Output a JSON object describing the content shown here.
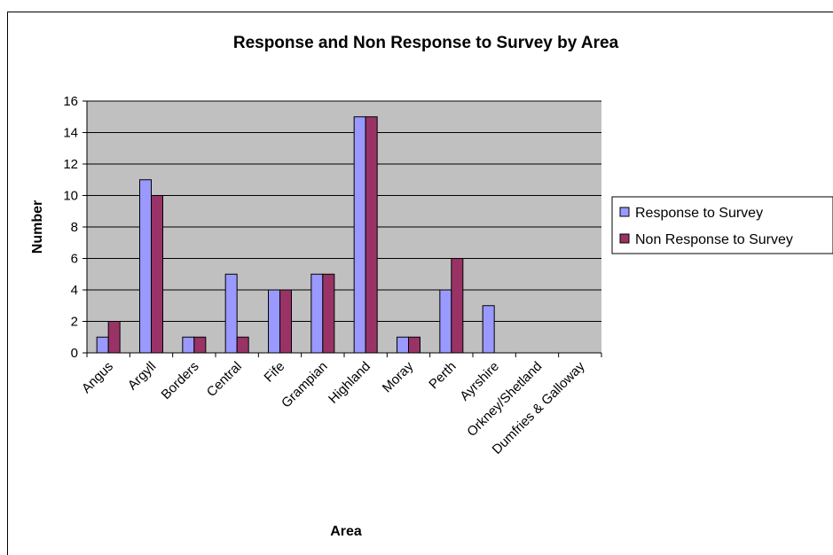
{
  "chart_data": {
    "type": "bar",
    "title": "Response and Non Response to Survey by Area",
    "xlabel": "Area",
    "ylabel": "Number",
    "categories": [
      "Angus",
      "Argyll",
      "Borders",
      "Central",
      "Fife",
      "Grampian",
      "Highland",
      "Moray",
      "Perth",
      "Ayrshire",
      "Orkney/Shetland",
      "Dumfries & Galloway"
    ],
    "series": [
      {
        "name": "Response to Survey",
        "color": "#9999FF",
        "values": [
          1,
          11,
          1,
          5,
          4,
          5,
          15,
          1,
          4,
          3,
          0,
          0
        ]
      },
      {
        "name": "Non Response to Survey",
        "color": "#993366",
        "values": [
          2,
          10,
          1,
          1,
          4,
          5,
          15,
          1,
          6,
          0,
          0,
          0
        ]
      }
    ],
    "ylim": [
      0,
      16
    ],
    "yticks": [
      0,
      2,
      4,
      6,
      8,
      10,
      12,
      14,
      16
    ],
    "grid": true,
    "plot_background": "#C0C0C0",
    "legend_position": "right"
  }
}
